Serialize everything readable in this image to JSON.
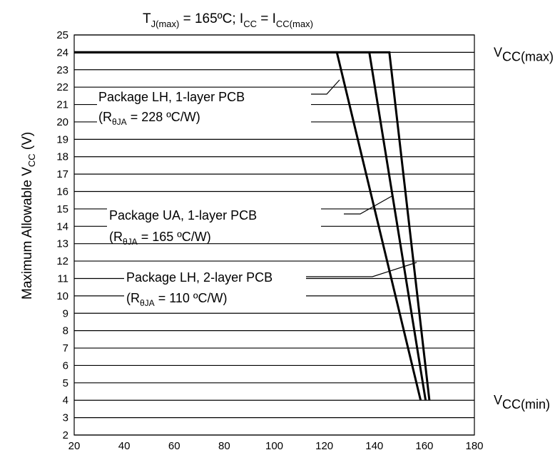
{
  "chart_data": {
    "type": "line",
    "title": {
      "main": "T",
      "sub1": "J(max)",
      "mid": " = 165ºC; I",
      "sub2": "CC",
      "mid2": " =  I",
      "sub3": "CC(max)"
    },
    "ylabel": {
      "main": "Maximum Allowable V",
      "sub": "CC",
      "tail": " (V)"
    },
    "xlabel": "",
    "xlim": [
      20,
      180
    ],
    "ylim": [
      2,
      25
    ],
    "x_ticks": [
      "20",
      "40",
      "60",
      "80",
      "100",
      "120",
      "140",
      "160",
      "180"
    ],
    "y_ticks": [
      "2",
      "3",
      "4",
      "5",
      "6",
      "7",
      "8",
      "9",
      "10",
      "11",
      "12",
      "13",
      "14",
      "15",
      "16",
      "17",
      "18",
      "19",
      "20",
      "21",
      "22",
      "23",
      "24",
      "25"
    ],
    "grid": "horizontal",
    "legend": "none",
    "series": [
      {
        "label_line1": "Package LH, 1-layer PCB",
        "label_r": "(R",
        "label_r_sub": "θJA",
        "label_r_tail": " = 228 ºC/W)",
        "points": [
          [
            20,
            24
          ],
          [
            125,
            24
          ],
          [
            158.5,
            4
          ]
        ]
      },
      {
        "label_line1": "Package UA, 1-layer PCB",
        "label_r": "(R",
        "label_r_sub": "θJA",
        "label_r_tail": " = 165 ºC/W)",
        "points": [
          [
            20,
            24
          ],
          [
            138,
            24
          ],
          [
            160.5,
            4
          ]
        ]
      },
      {
        "label_line1": "Package LH, 2-layer PCB",
        "label_r": "(R",
        "label_r_sub": "θJA",
        "label_r_tail": " = 110 ºC/W)",
        "points": [
          [
            20,
            24
          ],
          [
            146,
            24
          ],
          [
            162,
            4
          ]
        ]
      }
    ],
    "side_labels": [
      {
        "main": "V",
        "sub": "CC(max)",
        "y": 24
      },
      {
        "main": "V",
        "sub": "CC(min)",
        "y": 4
      }
    ],
    "line_color": "#000000"
  }
}
